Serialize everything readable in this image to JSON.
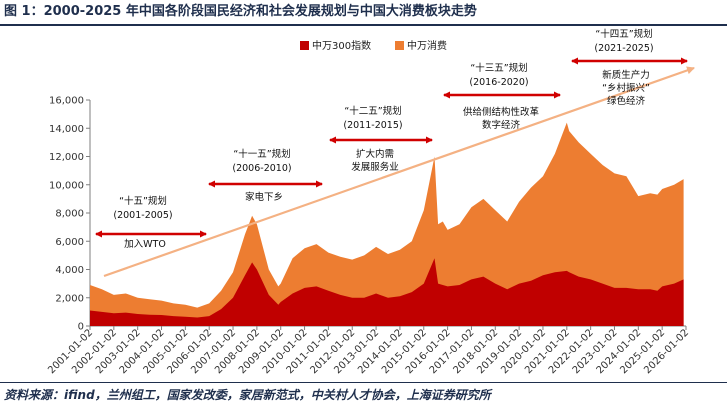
{
  "title": "图 1：2000-2025 年中国各阶段国民经济和社会发展规划与中国大消费板块走势",
  "source": "资料来源：ifind，兰州组工，国家发改委，家居新范式，中关村人才协会，上海证券研究所",
  "colors": {
    "index300": "#c00000",
    "consumption": "#ed7d31",
    "arrow": "#f4b183",
    "period": "#d00000",
    "text": "#1f2f4d"
  },
  "legend": [
    {
      "key": "index300",
      "label": "中万300指数"
    },
    {
      "key": "consumption",
      "label": "中万消费"
    }
  ],
  "annotations": [
    {
      "name": "plan-10",
      "plan": "“十五”规划",
      "years": "(2001-2005)",
      "event": [
        "加入WTO"
      ]
    },
    {
      "name": "plan-11",
      "plan": "“十一五”规划",
      "years": "(2006-2010)",
      "event": [
        "家电下乡"
      ]
    },
    {
      "name": "plan-12",
      "plan": "“十二五”规划",
      "years": "(2011-2015)",
      "event": [
        "扩大内需",
        "发展服务业"
      ]
    },
    {
      "name": "plan-13",
      "plan": "“十三五”规划",
      "years": "(2016-2020)",
      "event": [
        "供给侧结构性改革",
        "数字经济"
      ]
    },
    {
      "name": "plan-14",
      "plan": "“十四五”规划",
      "years": "(2021-2025)",
      "event": [
        "新质生产力",
        "“乡村振兴”",
        "绿色经济"
      ]
    }
  ],
  "chart_data": {
    "type": "area",
    "title": "",
    "xlabel": "",
    "ylabel": "",
    "ylim": [
      0,
      16000
    ],
    "yticks": [
      0,
      2000,
      4000,
      6000,
      8000,
      10000,
      12000,
      14000,
      16000
    ],
    "ytick_labels": [
      "0",
      "2,000",
      "4,000",
      "6,000",
      "8,000",
      "10,000",
      "12,000",
      "14,000",
      "16,000"
    ],
    "xtick_labels": [
      "2001-01-02",
      "2002-01-02",
      "2003-01-02",
      "2004-01-02",
      "2005-01-02",
      "2006-01-02",
      "2007-01-02",
      "2008-01-02",
      "2009-01-02",
      "2010-01-02",
      "2011-01-02",
      "2012-01-02",
      "2013-01-02",
      "2014-01-02",
      "2015-01-02",
      "2016-01-02",
      "2017-01-02",
      "2018-01-02",
      "2019-01-02",
      "2020-01-02",
      "2021-01-02",
      "2022-01-02",
      "2023-01-02",
      "2024-01-02",
      "2025-01-02",
      "2026-01-02"
    ],
    "x": [
      2001.0,
      2001.5,
      2002.0,
      2002.5,
      2003.0,
      2003.5,
      2004.0,
      2004.5,
      2005.0,
      2005.5,
      2006.0,
      2006.5,
      2007.0,
      2007.5,
      2007.8,
      2008.0,
      2008.5,
      2008.9,
      2009.0,
      2009.5,
      2010.0,
      2010.5,
      2011.0,
      2011.5,
      2012.0,
      2012.5,
      2013.0,
      2013.5,
      2014.0,
      2014.5,
      2015.0,
      2015.45,
      2015.6,
      2015.8,
      2016.0,
      2016.5,
      2017.0,
      2017.5,
      2018.0,
      2018.5,
      2019.0,
      2019.5,
      2020.0,
      2020.5,
      2021.0,
      2021.1,
      2021.5,
      2022.0,
      2022.5,
      2023.0,
      2023.5,
      2024.0,
      2024.5,
      2024.8,
      2025.0,
      2025.5,
      2025.9
    ],
    "series": [
      {
        "name": "中万消费",
        "values": [
          2900,
          2600,
          2200,
          2300,
          2000,
          1900,
          1800,
          1600,
          1500,
          1300,
          1600,
          2500,
          3800,
          6500,
          7800,
          7200,
          4000,
          2800,
          3000,
          4800,
          5500,
          5800,
          5200,
          4900,
          4700,
          5000,
          5600,
          5100,
          5400,
          6000,
          8200,
          12000,
          7200,
          7400,
          6800,
          7200,
          8400,
          9000,
          8200,
          7400,
          8800,
          9800,
          10600,
          12200,
          14400,
          13800,
          13000,
          12200,
          11400,
          10800,
          10600,
          9200,
          9400,
          9300,
          9700,
          10000,
          10400
        ]
      },
      {
        "name": "中万300指数",
        "values": [
          1100,
          1000,
          900,
          950,
          850,
          800,
          780,
          700,
          650,
          600,
          700,
          1200,
          2000,
          3600,
          4500,
          4000,
          2200,
          1500,
          1700,
          2300,
          2700,
          2800,
          2500,
          2200,
          2000,
          2000,
          2300,
          2000,
          2100,
          2400,
          3000,
          4800,
          3000,
          2900,
          2800,
          2900,
          3300,
          3500,
          3000,
          2600,
          3000,
          3200,
          3600,
          3800,
          3900,
          3800,
          3500,
          3300,
          3000,
          2700,
          2700,
          2600,
          2600,
          2500,
          2800,
          3000,
          3300
        ]
      }
    ],
    "grid": false,
    "legend_position": "top-center"
  }
}
